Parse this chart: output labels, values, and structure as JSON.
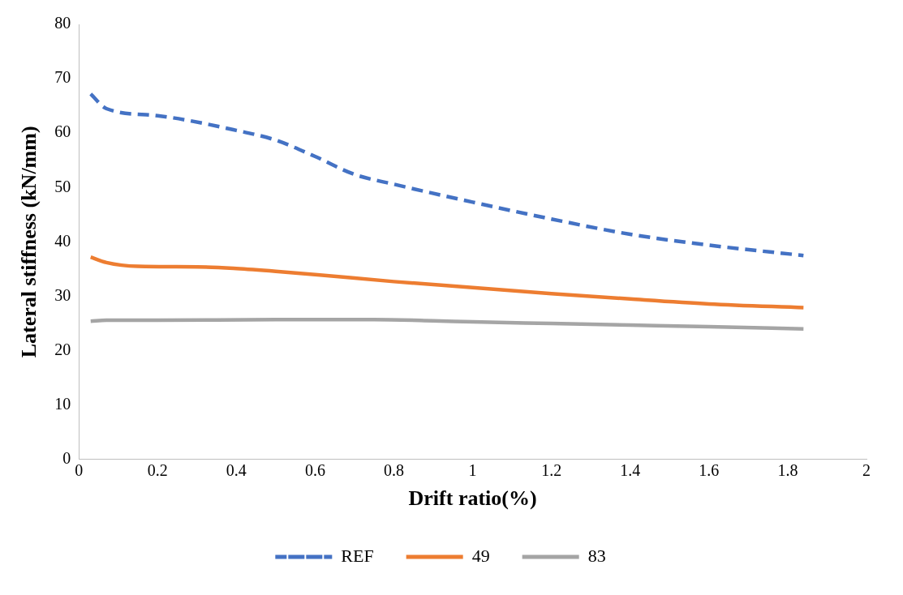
{
  "chart_data": {
    "type": "line",
    "xlabel": "Drift ratio(%)",
    "ylabel": "Lateral stiffness (kN/mm)",
    "xlim": [
      0,
      2
    ],
    "xticks": [
      0,
      0.2,
      0.4,
      0.6,
      0.8,
      1,
      1.2,
      1.4,
      1.6,
      1.8,
      2
    ],
    "ylim": [
      0,
      80
    ],
    "yticks": [
      0,
      10,
      20,
      30,
      40,
      50,
      60,
      70,
      80
    ],
    "grid": false,
    "legend": "bottom",
    "marker": "none",
    "series": [
      {
        "name": "REF",
        "color": "#4472c4",
        "line_style": "dashed",
        "x": [
          0.03,
          0.07,
          0.2,
          0.4,
          0.5,
          0.6,
          0.7,
          0.8,
          1.0,
          1.2,
          1.4,
          1.6,
          1.84
        ],
        "values": [
          67.2,
          64.5,
          63.2,
          60.5,
          58.7,
          55.7,
          52.4,
          50.6,
          47.3,
          44.2,
          41.4,
          39.4,
          37.5
        ]
      },
      {
        "name": "49",
        "color": "#ed7d31",
        "line_style": "solid",
        "x": [
          0.03,
          0.07,
          0.15,
          0.3,
          0.4,
          0.5,
          0.6,
          0.8,
          1.0,
          1.2,
          1.4,
          1.6,
          1.84
        ],
        "values": [
          37.2,
          36.2,
          35.5,
          35.4,
          35.1,
          34.6,
          34.0,
          32.7,
          31.6,
          30.5,
          29.5,
          28.6,
          27.9
        ]
      },
      {
        "name": "83",
        "color": "#a5a5a5",
        "line_style": "solid",
        "x": [
          0.03,
          0.07,
          0.2,
          0.5,
          0.75,
          0.9,
          1.0,
          1.2,
          1.4,
          1.6,
          1.84
        ],
        "values": [
          25.4,
          25.6,
          25.6,
          25.7,
          25.7,
          25.5,
          25.3,
          25.0,
          24.7,
          24.4,
          24.0
        ]
      }
    ]
  }
}
